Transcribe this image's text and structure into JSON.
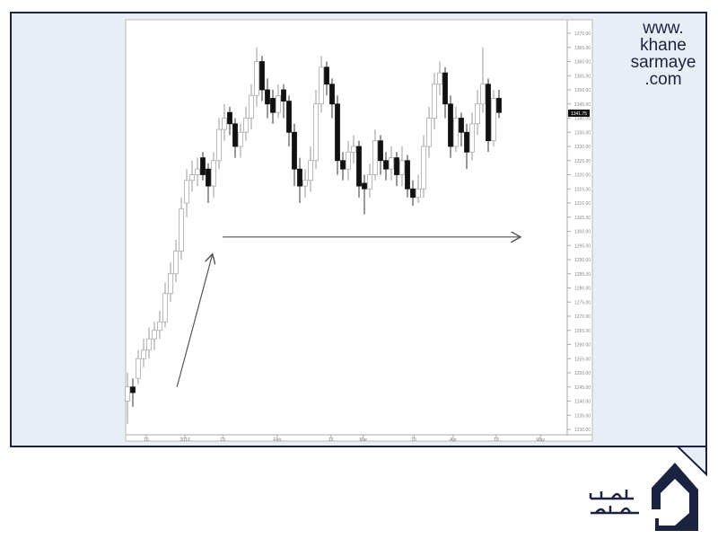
{
  "watermark": {
    "lines": [
      "www.",
      "khane",
      "sarmaye",
      ".com"
    ]
  },
  "colors": {
    "frame": "#1c2340",
    "frame_fill": "#e9edf5",
    "up_candle": "#ffffff",
    "down_candle": "#111111",
    "wick": "#9a9a9a"
  },
  "chart_data": {
    "type": "candlestick",
    "title": "",
    "ylim": [
      1230,
      1370
    ],
    "y_ticks": [
      "1370.00",
      "1365.00",
      "1360.00",
      "1355.00",
      "1350.00",
      "1345.00",
      "1340.00",
      "1335.00",
      "1330.00",
      "1325.00",
      "1320.00",
      "1315.00",
      "1310.00",
      "1305.00",
      "1300.00",
      "1295.00",
      "1290.00",
      "1285.00",
      "1280.00",
      "1275.00",
      "1270.00",
      "1265.00",
      "1260.00",
      "1255.00",
      "1250.00",
      "1245.00",
      "1240.00",
      "1235.00",
      "1230.00"
    ],
    "current_price": "1341.75",
    "x_ticks": [
      {
        "label": "16",
        "index": 3.5
      },
      {
        "label": "2016",
        "index": 10.7
      },
      {
        "label": "19",
        "index": 17.7
      },
      {
        "label": "Feb",
        "index": 27.8
      },
      {
        "label": "16",
        "index": 37.8
      },
      {
        "label": "Mar",
        "index": 43.8
      },
      {
        "label": "15",
        "index": 53.2
      },
      {
        "label": "Apr",
        "index": 60.5
      },
      {
        "label": "18",
        "index": 68.5
      },
      {
        "label": "May",
        "index": 76.7
      }
    ],
    "grid": false,
    "candles_ohlc": [
      [
        1240,
        1250,
        1232,
        1245
      ],
      [
        1245,
        1248,
        1238,
        1243
      ],
      [
        1248,
        1258,
        1246,
        1255
      ],
      [
        1255,
        1262,
        1252,
        1258
      ],
      [
        1258,
        1266,
        1255,
        1262
      ],
      [
        1262,
        1268,
        1258,
        1265
      ],
      [
        1265,
        1272,
        1262,
        1268
      ],
      [
        1268,
        1282,
        1266,
        1278
      ],
      [
        1278,
        1289,
        1275,
        1285
      ],
      [
        1285,
        1297,
        1282,
        1293
      ],
      [
        1293,
        1312,
        1290,
        1308
      ],
      [
        1310,
        1322,
        1305,
        1318
      ],
      [
        1318,
        1325,
        1314,
        1320
      ],
      [
        1320,
        1326,
        1316,
        1322
      ],
      [
        1326,
        1328,
        1318,
        1320
      ],
      [
        1322,
        1324,
        1310,
        1316
      ],
      [
        1316,
        1328,
        1312,
        1325
      ],
      [
        1325,
        1340,
        1322,
        1336
      ],
      [
        1336,
        1345,
        1332,
        1340
      ],
      [
        1342,
        1344,
        1334,
        1338
      ],
      [
        1338,
        1340,
        1326,
        1330
      ],
      [
        1330,
        1338,
        1326,
        1335
      ],
      [
        1335,
        1344,
        1332,
        1340
      ],
      [
        1340,
        1352,
        1336,
        1348
      ],
      [
        1348,
        1365,
        1344,
        1360
      ],
      [
        1360,
        1362,
        1346,
        1350
      ],
      [
        1350,
        1354,
        1340,
        1345
      ],
      [
        1347,
        1350,
        1338,
        1342
      ],
      [
        1342,
        1352,
        1340,
        1348
      ],
      [
        1350,
        1352,
        1340,
        1346
      ],
      [
        1346,
        1348,
        1330,
        1335
      ],
      [
        1335,
        1338,
        1316,
        1322
      ],
      [
        1322,
        1326,
        1310,
        1316
      ],
      [
        1316,
        1322,
        1312,
        1318
      ],
      [
        1318,
        1330,
        1314,
        1325
      ],
      [
        1325,
        1350,
        1322,
        1345
      ],
      [
        1345,
        1362,
        1342,
        1358
      ],
      [
        1358,
        1360,
        1348,
        1352
      ],
      [
        1352,
        1354,
        1340,
        1345
      ],
      [
        1345,
        1348,
        1320,
        1325
      ],
      [
        1325,
        1328,
        1318,
        1322
      ],
      [
        1322,
        1332,
        1318,
        1328
      ],
      [
        1328,
        1334,
        1324,
        1330
      ],
      [
        1330,
        1332,
        1312,
        1316
      ],
      [
        1317,
        1320,
        1306,
        1315
      ],
      [
        1315,
        1324,
        1312,
        1320
      ],
      [
        1320,
        1336,
        1318,
        1332
      ],
      [
        1332,
        1334,
        1320,
        1325
      ],
      [
        1325,
        1328,
        1318,
        1322
      ],
      [
        1322,
        1330,
        1318,
        1326
      ],
      [
        1326,
        1328,
        1316,
        1320
      ],
      [
        1320,
        1330,
        1316,
        1325
      ],
      [
        1325,
        1327,
        1312,
        1315
      ],
      [
        1315,
        1318,
        1309,
        1312
      ],
      [
        1312,
        1320,
        1310,
        1315
      ],
      [
        1315,
        1334,
        1312,
        1330
      ],
      [
        1330,
        1344,
        1326,
        1340
      ],
      [
        1340,
        1356,
        1336,
        1352
      ],
      [
        1352,
        1360,
        1348,
        1356
      ],
      [
        1356,
        1358,
        1340,
        1345
      ],
      [
        1345,
        1348,
        1326,
        1330
      ],
      [
        1330,
        1344,
        1328,
        1340
      ],
      [
        1340,
        1342,
        1330,
        1335
      ],
      [
        1335,
        1338,
        1322,
        1328
      ],
      [
        1328,
        1342,
        1325,
        1338
      ],
      [
        1338,
        1350,
        1334,
        1345
      ],
      [
        1345,
        1365,
        1342,
        1352
      ],
      [
        1352,
        1354,
        1328,
        1332
      ],
      [
        1332,
        1350,
        1330,
        1347
      ],
      [
        1347,
        1350,
        1340,
        1342
      ]
    ],
    "annotations": [
      {
        "type": "arrow",
        "from": {
          "index": 9.2,
          "price": 1245
        },
        "to": {
          "index": 15.8,
          "price": 1292
        }
      },
      {
        "type": "arrow",
        "from": {
          "index": 17.7,
          "price": 1298
        },
        "to": {
          "index": 73,
          "price": 1298
        }
      }
    ]
  }
}
